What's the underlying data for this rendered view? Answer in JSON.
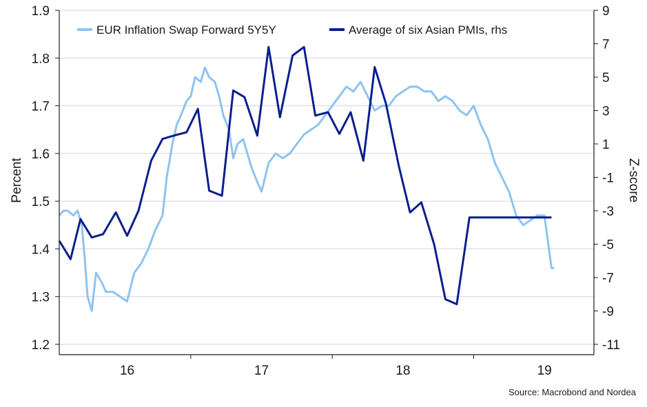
{
  "chart_data": {
    "type": "line",
    "source": "Source: Macrobond and Nordea",
    "ylabel": "Percent",
    "y2label": "Z-score",
    "x_ticks": [
      "16",
      "17",
      "18",
      "19"
    ],
    "ylim": [
      1.2,
      1.9
    ],
    "y_ticks": [
      "1.2",
      "1.3",
      "1.4",
      "1.5",
      "1.6",
      "1.7",
      "1.8",
      "1.9"
    ],
    "y2lim": [
      -11,
      9
    ],
    "y2_ticks": [
      "-11",
      "-9",
      "-7",
      "-5",
      "-3",
      "-1",
      "1",
      "3",
      "5",
      "7",
      "9"
    ],
    "legend_position": "top",
    "series": [
      {
        "name": "EUR Inflation Swap Forward 5Y5Y",
        "axis": "left",
        "color": "#8ec3f0",
        "x": [
          2015.52,
          2015.55,
          2015.58,
          2015.62,
          2015.65,
          2015.68,
          2015.7,
          2015.72,
          2015.75,
          2015.78,
          2015.82,
          2015.85,
          2015.9,
          2015.95,
          2016.0,
          2016.05,
          2016.1,
          2016.15,
          2016.2,
          2016.25,
          2016.28,
          2016.32,
          2016.35,
          2016.38,
          2016.42,
          2016.45,
          2016.48,
          2016.52,
          2016.55,
          2016.58,
          2016.62,
          2016.65,
          2016.68,
          2016.72,
          2016.75,
          2016.78,
          2016.82,
          2016.85,
          2016.88,
          2016.92,
          2016.95,
          2017.0,
          2017.05,
          2017.1,
          2017.15,
          2017.2,
          2017.25,
          2017.3,
          2017.35,
          2017.4,
          2017.45,
          2017.5,
          2017.55,
          2017.6,
          2017.65,
          2017.7,
          2017.75,
          2017.8,
          2017.85,
          2017.9,
          2017.95,
          2018.0,
          2018.05,
          2018.1,
          2018.15,
          2018.2,
          2018.25,
          2018.3,
          2018.35,
          2018.4,
          2018.45,
          2018.5,
          2018.55,
          2018.6,
          2018.65,
          2018.7,
          2018.75,
          2018.8,
          2018.85,
          2018.9,
          2018.95,
          2019.0,
          2019.02
        ],
        "y": [
          1.47,
          1.48,
          1.48,
          1.47,
          1.48,
          1.45,
          1.38,
          1.3,
          1.27,
          1.35,
          1.33,
          1.31,
          1.31,
          1.3,
          1.29,
          1.35,
          1.37,
          1.4,
          1.44,
          1.47,
          1.55,
          1.62,
          1.66,
          1.68,
          1.71,
          1.72,
          1.76,
          1.75,
          1.78,
          1.76,
          1.75,
          1.72,
          1.68,
          1.65,
          1.59,
          1.62,
          1.63,
          1.6,
          1.57,
          1.54,
          1.52,
          1.58,
          1.6,
          1.59,
          1.6,
          1.62,
          1.64,
          1.65,
          1.66,
          1.68,
          1.7,
          1.72,
          1.74,
          1.73,
          1.75,
          1.72,
          1.69,
          1.7,
          1.7,
          1.72,
          1.73,
          1.74,
          1.74,
          1.73,
          1.73,
          1.71,
          1.72,
          1.71,
          1.69,
          1.68,
          1.7,
          1.66,
          1.63,
          1.58,
          1.55,
          1.52,
          1.47,
          1.45,
          1.46,
          1.47,
          1.47,
          1.36,
          1.36
        ]
      },
      {
        "name": "Average of six Asian PMIs, rhs",
        "axis": "right",
        "color": "#0a1e8c",
        "x": [
          2015.52,
          2015.6,
          2015.67,
          2015.75,
          2015.83,
          2015.92,
          2016.0,
          2016.08,
          2016.17,
          2016.25,
          2016.33,
          2016.42,
          2016.5,
          2016.58,
          2016.67,
          2016.75,
          2016.83,
          2016.92,
          2017.0,
          2017.08,
          2017.17,
          2017.25,
          2017.33,
          2017.42,
          2017.5,
          2017.58,
          2017.67,
          2017.75,
          2017.83,
          2017.92,
          2018.0,
          2018.08,
          2018.17,
          2018.25,
          2018.33,
          2018.42,
          2018.5,
          2018.58,
          2018.67,
          2018.75,
          2018.83,
          2018.92,
          2019.0
        ],
        "y": [
          -4.8,
          -5.9,
          -3.5,
          -4.6,
          -4.4,
          -3.1,
          -4.5,
          -3.0,
          0.0,
          1.3,
          1.5,
          1.7,
          3.1,
          -1.8,
          -2.1,
          4.2,
          3.8,
          1.5,
          6.8,
          2.6,
          6.3,
          6.8,
          2.7,
          2.9,
          1.6,
          2.9,
          0.0,
          5.6,
          3.4,
          -0.3,
          -3.1,
          -2.5,
          -5.0,
          -8.3,
          -8.6,
          -3.4,
          -3.4,
          -3.4,
          -3.4,
          -3.4,
          -3.4,
          -3.4,
          -3.4
        ]
      }
    ]
  }
}
